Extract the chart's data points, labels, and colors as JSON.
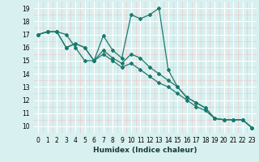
{
  "xlabel": "Humidex (Indice chaleur)",
  "bg_color": "#d8f0f0",
  "grid_major_color": "#ffffff",
  "grid_minor_color": "#f0c8c8",
  "line_color": "#1a7a6e",
  "xlim": [
    -0.5,
    23.5
  ],
  "ylim": [
    9.5,
    19.5
  ],
  "xticks": [
    0,
    1,
    2,
    3,
    4,
    5,
    6,
    7,
    8,
    9,
    10,
    11,
    12,
    13,
    14,
    15,
    16,
    17,
    18,
    19,
    20,
    21,
    22,
    23
  ],
  "yticks": [
    10,
    11,
    12,
    13,
    14,
    15,
    16,
    17,
    18,
    19
  ],
  "series": [
    [
      17.0,
      17.2,
      17.2,
      17.0,
      16.0,
      15.0,
      15.0,
      16.9,
      15.8,
      15.2,
      18.5,
      18.2,
      18.5,
      19.0,
      14.3,
      13.0,
      12.2,
      11.8,
      11.4,
      10.6,
      10.5,
      10.5,
      10.5,
      9.9
    ],
    [
      17.0,
      17.2,
      17.2,
      16.0,
      16.3,
      16.0,
      15.0,
      15.8,
      15.2,
      14.8,
      15.5,
      15.2,
      14.5,
      14.0,
      13.5,
      13.0,
      12.2,
      11.8,
      11.4,
      10.6,
      10.5,
      10.5,
      10.5,
      9.9
    ],
    [
      17.0,
      17.2,
      17.2,
      16.0,
      16.3,
      16.0,
      15.0,
      15.5,
      15.0,
      14.5,
      14.8,
      14.3,
      13.8,
      13.3,
      13.0,
      12.5,
      12.0,
      11.5,
      11.2,
      10.6,
      10.5,
      10.5,
      10.5,
      9.9
    ]
  ],
  "tick_fontsize": 5.5,
  "xlabel_fontsize": 6.5,
  "marker_size": 2.0,
  "linewidth": 0.9
}
